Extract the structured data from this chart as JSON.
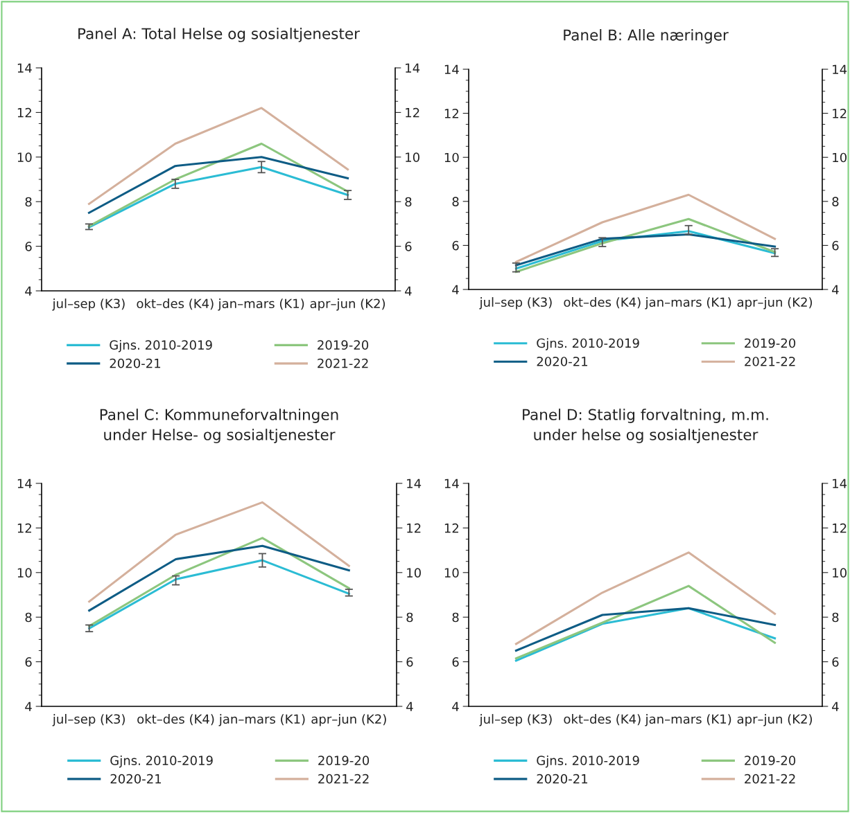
{
  "chart_data": [
    {
      "type": "line",
      "title": "Panel A: Total Helse og sosialtjenester",
      "categories": [
        "jul–sep (K3)",
        "okt–des (K4)",
        "jan–mars (K1)",
        "apr–jun (K2)"
      ],
      "ylim": [
        4,
        14
      ],
      "yticks": [
        4,
        6,
        8,
        10,
        12,
        14
      ],
      "y2lim": [
        4,
        14
      ],
      "y2ticks": [
        4,
        6,
        8,
        10,
        12,
        14
      ],
      "legend": "bottom",
      "grid": false,
      "series": [
        {
          "name": "Gjns. 2010-2019",
          "color": "#2bbcd4",
          "values": [
            6.85,
            8.8,
            9.55,
            8.3
          ],
          "errors": [
            [
              6.75,
              7.0
            ],
            [
              8.6,
              9.0
            ],
            [
              9.3,
              9.8
            ],
            [
              8.1,
              8.5
            ]
          ]
        },
        {
          "name": "2019-20",
          "color": "#8cc67e",
          "values": [
            6.9,
            9.0,
            10.6,
            8.45
          ]
        },
        {
          "name": "2020-21",
          "color": "#0e5c85",
          "values": [
            7.5,
            9.6,
            10.0,
            9.05
          ]
        },
        {
          "name": "2021-22",
          "color": "#d4b09c",
          "values": [
            7.9,
            10.6,
            12.2,
            9.45
          ]
        }
      ]
    },
    {
      "type": "line",
      "title": "Panel B: Alle næringer",
      "categories": [
        "jul–sep (K3)",
        "okt–des (K4)",
        "jan–mars (K1)",
        "apr–jun (K2)"
      ],
      "ylim": [
        4,
        14
      ],
      "yticks": [
        4,
        6,
        8,
        10,
        12,
        14
      ],
      "y2lim": [
        4,
        14
      ],
      "y2ticks": [
        4,
        6,
        8,
        10,
        12,
        14
      ],
      "legend": "bottom",
      "grid": false,
      "series": [
        {
          "name": "Gjns. 2010-2019",
          "color": "#2bbcd4",
          "values": [
            4.95,
            6.2,
            6.65,
            5.65
          ],
          "errors": [
            [
              4.8,
              5.2
            ],
            [
              5.95,
              6.35
            ],
            [
              6.5,
              6.9
            ],
            [
              5.5,
              5.85
            ]
          ]
        },
        {
          "name": "2019-20",
          "color": "#8cc67e",
          "values": [
            4.8,
            6.1,
            7.2,
            5.7
          ]
        },
        {
          "name": "2020-21",
          "color": "#0e5c85",
          "values": [
            5.1,
            6.3,
            6.5,
            5.95
          ]
        },
        {
          "name": "2021-22",
          "color": "#d4b09c",
          "values": [
            5.25,
            7.05,
            8.3,
            6.3
          ]
        }
      ]
    },
    {
      "type": "line",
      "title": "Panel C: Kommuneforvaltningen\nunder Helse- og sosialtjenester",
      "categories": [
        "jul–sep (K3)",
        "okt–des (K4)",
        "jan–mars (K1)",
        "apr–jun (K2)"
      ],
      "ylim": [
        4,
        14
      ],
      "yticks": [
        4,
        6,
        8,
        10,
        12,
        14
      ],
      "y2lim": [
        4,
        14
      ],
      "y2ticks": [
        4,
        6,
        8,
        10,
        12,
        14
      ],
      "legend": "bottom",
      "grid": false,
      "series": [
        {
          "name": "Gjns. 2010-2019",
          "color": "#2bbcd4",
          "values": [
            7.5,
            9.7,
            10.55,
            9.05
          ],
          "errors": [
            [
              7.35,
              7.65
            ],
            [
              9.45,
              9.85
            ],
            [
              10.25,
              10.85
            ],
            [
              8.95,
              9.25
            ]
          ]
        },
        {
          "name": "2019-20",
          "color": "#8cc67e",
          "values": [
            7.6,
            9.9,
            11.55,
            9.3
          ]
        },
        {
          "name": "2020-21",
          "color": "#0e5c85",
          "values": [
            8.3,
            10.6,
            11.2,
            10.1
          ]
        },
        {
          "name": "2021-22",
          "color": "#d4b09c",
          "values": [
            8.7,
            11.7,
            13.15,
            10.3
          ]
        }
      ]
    },
    {
      "type": "line",
      "title": "Panel D: Statlig forvaltning, m.m.\nunder helse og sosialtjenester",
      "categories": [
        "jul–sep (K3)",
        "okt–des (K4)",
        "jan–mars (K1)",
        "apr–jun (K2)"
      ],
      "ylim": [
        4,
        14
      ],
      "yticks": [
        4,
        6,
        8,
        10,
        12,
        14
      ],
      "y2lim": [
        4,
        14
      ],
      "y2ticks": [
        4,
        6,
        8,
        10,
        12,
        14
      ],
      "legend": "bottom",
      "grid": false,
      "series": [
        {
          "name": "Gjns. 2010-2019",
          "color": "#2bbcd4",
          "values": [
            6.05,
            7.7,
            8.4,
            7.05
          ]
        },
        {
          "name": "2019-20",
          "color": "#8cc67e",
          "values": [
            6.15,
            7.75,
            9.4,
            6.85
          ]
        },
        {
          "name": "2020-21",
          "color": "#0e5c85",
          "values": [
            6.5,
            8.1,
            8.4,
            7.65
          ]
        },
        {
          "name": "2021-22",
          "color": "#d4b09c",
          "values": [
            6.8,
            9.1,
            10.9,
            8.15
          ]
        }
      ]
    }
  ]
}
